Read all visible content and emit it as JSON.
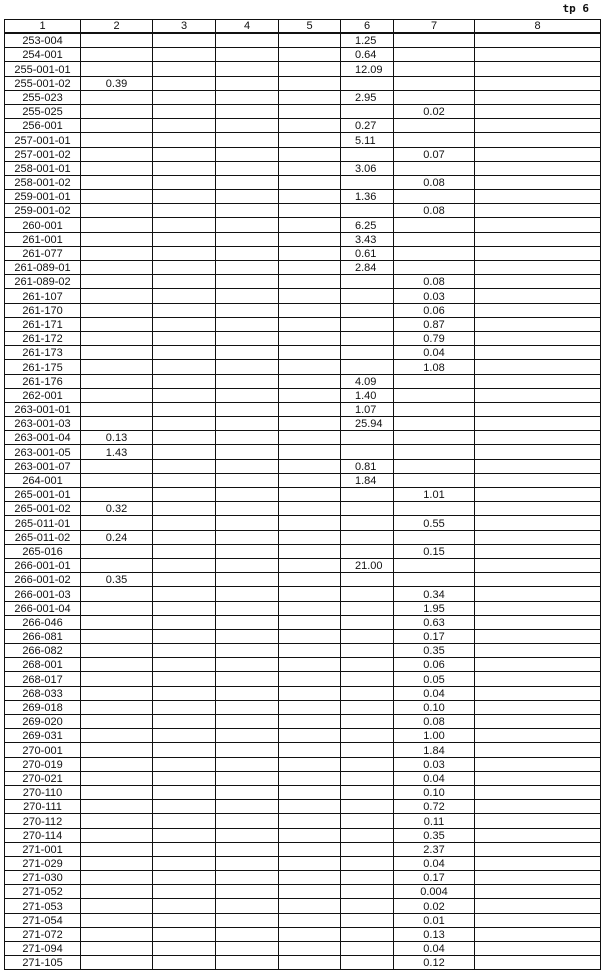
{
  "page_label": "tp 6",
  "columns": [
    "1",
    "2",
    "3",
    "4",
    "5",
    "6",
    "7",
    "8"
  ],
  "rows": [
    [
      "253-004",
      "",
      "",
      "",
      "",
      "1.25",
      "",
      ""
    ],
    [
      "254-001",
      "",
      "",
      "",
      "",
      "0.64",
      "",
      ""
    ],
    [
      "255-001-01",
      "",
      "",
      "",
      "",
      "12.09",
      "",
      ""
    ],
    [
      "255-001-02",
      "0.39",
      "",
      "",
      "",
      "",
      "",
      ""
    ],
    [
      "255-023",
      "",
      "",
      "",
      "",
      "2.95",
      "",
      ""
    ],
    [
      "255-025",
      "",
      "",
      "",
      "",
      "",
      "0.02",
      ""
    ],
    [
      "256-001",
      "",
      "",
      "",
      "",
      "0.27",
      "",
      ""
    ],
    [
      "257-001-01",
      "",
      "",
      "",
      "",
      "5.11",
      "",
      ""
    ],
    [
      "257-001-02",
      "",
      "",
      "",
      "",
      "",
      "0.07",
      ""
    ],
    [
      "258-001-01",
      "",
      "",
      "",
      "",
      "3.06",
      "",
      ""
    ],
    [
      "258-001-02",
      "",
      "",
      "",
      "",
      "",
      "0.08",
      ""
    ],
    [
      "259-001-01",
      "",
      "",
      "",
      "",
      "1.36",
      "",
      ""
    ],
    [
      "259-001-02",
      "",
      "",
      "",
      "",
      "",
      "0.08",
      ""
    ],
    [
      "260-001",
      "",
      "",
      "",
      "",
      "6.25",
      "",
      ""
    ],
    [
      "261-001",
      "",
      "",
      "",
      "",
      "3.43",
      "",
      ""
    ],
    [
      "261-077",
      "",
      "",
      "",
      "",
      "0.61",
      "",
      ""
    ],
    [
      "261-089-01",
      "",
      "",
      "",
      "",
      "2.84",
      "",
      ""
    ],
    [
      "261-089-02",
      "",
      "",
      "",
      "",
      "",
      "0.08",
      ""
    ],
    [
      "261-107",
      "",
      "",
      "",
      "",
      "",
      "0.03",
      ""
    ],
    [
      "261-170",
      "",
      "",
      "",
      "",
      "",
      "0.06",
      ""
    ],
    [
      "261-171",
      "",
      "",
      "",
      "",
      "",
      "0.87",
      ""
    ],
    [
      "261-172",
      "",
      "",
      "",
      "",
      "",
      "0.79",
      ""
    ],
    [
      "261-173",
      "",
      "",
      "",
      "",
      "",
      "0.04",
      ""
    ],
    [
      "261-175",
      "",
      "",
      "",
      "",
      "",
      "1.08",
      ""
    ],
    [
      "261-176",
      "",
      "",
      "",
      "",
      "4.09",
      "",
      ""
    ],
    [
      "262-001",
      "",
      "",
      "",
      "",
      "1.40",
      "",
      ""
    ],
    [
      "263-001-01",
      "",
      "",
      "",
      "",
      "1.07",
      "",
      ""
    ],
    [
      "263-001-03",
      "",
      "",
      "",
      "",
      "25.94",
      "",
      ""
    ],
    [
      "263-001-04",
      "0.13",
      "",
      "",
      "",
      "",
      "",
      ""
    ],
    [
      "263-001-05",
      "1.43",
      "",
      "",
      "",
      "",
      "",
      ""
    ],
    [
      "263-001-07",
      "",
      "",
      "",
      "",
      "0.81",
      "",
      ""
    ],
    [
      "264-001",
      "",
      "",
      "",
      "",
      "1.84",
      "",
      ""
    ],
    [
      "265-001-01",
      "",
      "",
      "",
      "",
      "",
      "1.01",
      ""
    ],
    [
      "265-001-02",
      "0.32",
      "",
      "",
      "",
      "",
      "",
      ""
    ],
    [
      "265-011-01",
      "",
      "",
      "",
      "",
      "",
      "0.55",
      ""
    ],
    [
      "265-011-02",
      "0.24",
      "",
      "",
      "",
      "",
      "",
      ""
    ],
    [
      "265-016",
      "",
      "",
      "",
      "",
      "",
      "0.15",
      ""
    ],
    [
      "266-001-01",
      "",
      "",
      "",
      "",
      "21.00",
      "",
      ""
    ],
    [
      "266-001-02",
      "0.35",
      "",
      "",
      "",
      "",
      "",
      ""
    ],
    [
      "266-001-03",
      "",
      "",
      "",
      "",
      "",
      "0.34",
      ""
    ],
    [
      "266-001-04",
      "",
      "",
      "",
      "",
      "",
      "1.95",
      ""
    ],
    [
      "266-046",
      "",
      "",
      "",
      "",
      "",
      "0.63",
      ""
    ],
    [
      "266-081",
      "",
      "",
      "",
      "",
      "",
      "0.17",
      ""
    ],
    [
      "266-082",
      "",
      "",
      "",
      "",
      "",
      "0.35",
      ""
    ],
    [
      "268-001",
      "",
      "",
      "",
      "",
      "",
      "0.06",
      ""
    ],
    [
      "268-017",
      "",
      "",
      "",
      "",
      "",
      "0.05",
      ""
    ],
    [
      "268-033",
      "",
      "",
      "",
      "",
      "",
      "0.04",
      ""
    ],
    [
      "269-018",
      "",
      "",
      "",
      "",
      "",
      "0.10",
      ""
    ],
    [
      "269-020",
      "",
      "",
      "",
      "",
      "",
      "0.08",
      ""
    ],
    [
      "269-031",
      "",
      "",
      "",
      "",
      "",
      "1.00",
      ""
    ],
    [
      "270-001",
      "",
      "",
      "",
      "",
      "",
      "1.84",
      ""
    ],
    [
      "270-019",
      "",
      "",
      "",
      "",
      "",
      "0.03",
      ""
    ],
    [
      "270-021",
      "",
      "",
      "",
      "",
      "",
      "0.04",
      ""
    ],
    [
      "270-110",
      "",
      "",
      "",
      "",
      "",
      "0.10",
      ""
    ],
    [
      "270-111",
      "",
      "",
      "",
      "",
      "",
      "0.72",
      ""
    ],
    [
      "270-112",
      "",
      "",
      "",
      "",
      "",
      "0.11",
      ""
    ],
    [
      "270-114",
      "",
      "",
      "",
      "",
      "",
      "0.35",
      ""
    ],
    [
      "271-001",
      "",
      "",
      "",
      "",
      "",
      "2.37",
      ""
    ],
    [
      "271-029",
      "",
      "",
      "",
      "",
      "",
      "0.04",
      ""
    ],
    [
      "271-030",
      "",
      "",
      "",
      "",
      "",
      "0.17",
      ""
    ],
    [
      "271-052",
      "",
      "",
      "",
      "",
      "",
      "0.004",
      ""
    ],
    [
      "271-053",
      "",
      "",
      "",
      "",
      "",
      "0.02",
      ""
    ],
    [
      "271-054",
      "",
      "",
      "",
      "",
      "",
      "0.01",
      ""
    ],
    [
      "271-072",
      "",
      "",
      "",
      "",
      "",
      "0.13",
      ""
    ],
    [
      "271-094",
      "",
      "",
      "",
      "",
      "",
      "0.04",
      ""
    ],
    [
      "271-105",
      "",
      "",
      "",
      "",
      "",
      "0.12",
      ""
    ]
  ]
}
